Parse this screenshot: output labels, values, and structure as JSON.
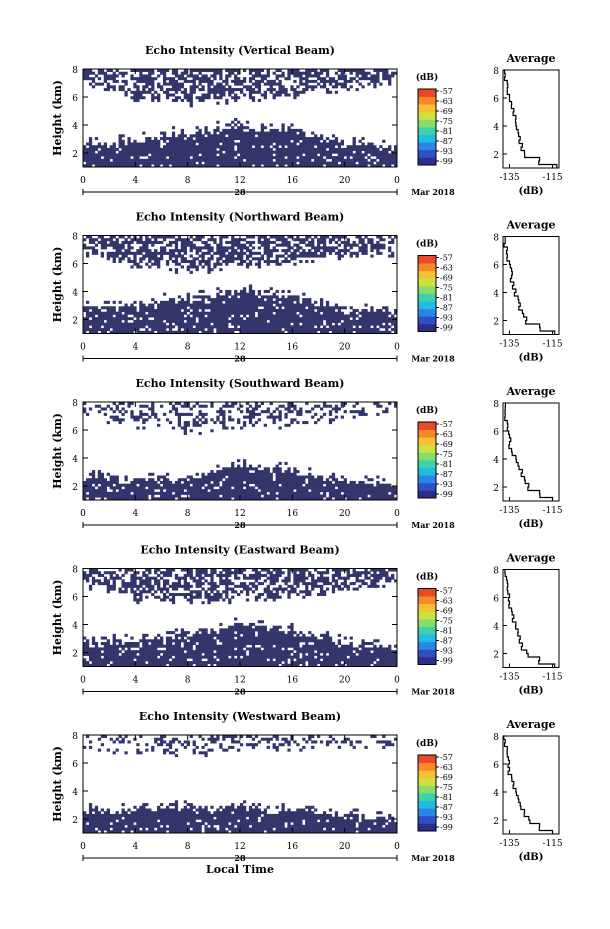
{
  "figure": {
    "bottom_xlabel": "Local Time",
    "colorbar_unit": "(dB)",
    "colorbar_ticks": [
      "-57",
      "-63",
      "-69",
      "-75",
      "-81",
      "-87",
      "-93",
      "-99"
    ],
    "colormap": [
      "#2b2f88",
      "#2f4fc4",
      "#2a86e6",
      "#21bde0",
      "#3fd1a9",
      "#86dd6a",
      "#cfe13f",
      "#f6c232",
      "#f8892a",
      "#ea4a2a"
    ],
    "no_data_color": "#ffffff",
    "echo_color": "#33346b"
  },
  "chart_data": [
    {
      "type": "heatmap",
      "title": "Echo Intensity (Vertical Beam)",
      "ylabel": "Height (km)",
      "x_ticks": [
        "0",
        "4",
        "8",
        "12",
        "16",
        "20",
        "0"
      ],
      "x_range": [
        0,
        24
      ],
      "date_label": "28",
      "month_label": "Mar 2018",
      "y_ticks": [
        "2",
        "4",
        "6",
        "8"
      ],
      "y_range": [
        1,
        8
      ],
      "upper_layer": {
        "bottom_km": [
          6.9,
          6.0,
          5.6,
          5.8,
          6.2,
          6.6,
          6.9
        ],
        "density": 0.62
      },
      "lower_layer": {
        "top_km": [
          2.6,
          2.8,
          3.4,
          3.9,
          3.6,
          2.6,
          2.4
        ],
        "density": 0.9
      },
      "average_profile": {
        "title": "Average",
        "xlabel": "(dB)",
        "x_ticks": [
          "-135",
          "-115"
        ],
        "x_range": [
          -138,
          -112
        ],
        "y_ticks": [
          "2",
          "4",
          "6",
          "8"
        ],
        "y_range": [
          1,
          8
        ],
        "heights_km": [
          1.0,
          1.5,
          2.0,
          2.5,
          3.0,
          3.5,
          4.0,
          4.5,
          5.0,
          5.5,
          6.0,
          6.5,
          7.0,
          7.5,
          8.0
        ],
        "values_db": [
          -113,
          -121,
          -128,
          -129,
          -130,
          -131,
          -132,
          -132,
          -133,
          -134,
          -135,
          -136,
          -136,
          -137,
          -137
        ]
      }
    },
    {
      "type": "heatmap",
      "title": "Echo Intensity (Northward Beam)",
      "ylabel": "Height (km)",
      "x_ticks": [
        "0",
        "4",
        "8",
        "12",
        "16",
        "20",
        "0"
      ],
      "x_range": [
        0,
        24
      ],
      "date_label": "28",
      "month_label": "Mar 2018",
      "y_ticks": [
        "2",
        "4",
        "6",
        "8"
      ],
      "y_range": [
        1,
        8
      ],
      "upper_layer": {
        "bottom_km": [
          6.8,
          5.9,
          5.5,
          5.7,
          6.1,
          6.5,
          6.8
        ],
        "density": 0.6
      },
      "lower_layer": {
        "top_km": [
          2.8,
          2.9,
          3.5,
          3.9,
          3.6,
          2.7,
          2.4
        ],
        "density": 0.9
      },
      "average_profile": {
        "title": "Average",
        "xlabel": "(dB)",
        "x_ticks": [
          "-135",
          "-115"
        ],
        "x_range": [
          -138,
          -112
        ],
        "y_ticks": [
          "2",
          "4",
          "6",
          "8"
        ],
        "y_range": [
          1,
          8
        ],
        "heights_km": [
          1.0,
          1.5,
          2.0,
          2.5,
          3.0,
          3.5,
          4.0,
          4.5,
          5.0,
          5.5,
          6.0,
          6.5,
          7.0,
          7.5,
          8.0
        ],
        "values_db": [
          -114,
          -121,
          -127,
          -129,
          -130,
          -131,
          -132,
          -133,
          -134,
          -134,
          -135,
          -136,
          -136,
          -137,
          -137
        ]
      }
    },
    {
      "type": "heatmap",
      "title": "Echo Intensity (Southward Beam)",
      "ylabel": "Height (km)",
      "x_ticks": [
        "0",
        "4",
        "8",
        "12",
        "16",
        "20",
        "0"
      ],
      "x_range": [
        0,
        24
      ],
      "date_label": "28",
      "month_label": "Mar 2018",
      "y_ticks": [
        "2",
        "4",
        "6",
        "8"
      ],
      "y_range": [
        1,
        8
      ],
      "upper_layer": {
        "bottom_km": [
          7.0,
          6.4,
          6.0,
          6.2,
          6.5,
          6.9,
          7.3
        ],
        "density": 0.35
      },
      "lower_layer": {
        "top_km": [
          2.8,
          2.4,
          2.4,
          3.5,
          3.0,
          2.3,
          2.0
        ],
        "density": 0.9
      },
      "average_profile": {
        "title": "Average",
        "xlabel": "(dB)",
        "x_ticks": [
          "-135",
          "-115"
        ],
        "x_range": [
          -138,
          -112
        ],
        "y_ticks": [
          "2",
          "4",
          "6",
          "8"
        ],
        "y_range": [
          1,
          8
        ],
        "heights_km": [
          1.0,
          1.5,
          2.0,
          2.5,
          3.0,
          3.5,
          4.0,
          4.5,
          5.0,
          5.5,
          6.0,
          6.5,
          7.0,
          7.5,
          8.0
        ],
        "values_db": [
          -115,
          -121,
          -126,
          -128,
          -129,
          -131,
          -132,
          -134,
          -135,
          -135,
          -136,
          -136,
          -137,
          -137,
          -137
        ]
      }
    },
    {
      "type": "heatmap",
      "title": "Echo Intensity (Eastward Beam)",
      "ylabel": "Height (km)",
      "x_ticks": [
        "0",
        "4",
        "8",
        "12",
        "16",
        "20",
        "0"
      ],
      "x_range": [
        0,
        24
      ],
      "date_label": "28",
      "month_label": "Mar 2018",
      "y_ticks": [
        "2",
        "4",
        "6",
        "8"
      ],
      "y_range": [
        1,
        8
      ],
      "upper_layer": {
        "bottom_km": [
          6.8,
          5.8,
          5.5,
          5.8,
          6.0,
          6.4,
          6.9
        ],
        "density": 0.6
      },
      "lower_layer": {
        "top_km": [
          2.5,
          2.8,
          3.3,
          3.9,
          3.5,
          2.7,
          2.3
        ],
        "density": 0.9
      },
      "average_profile": {
        "title": "Average",
        "xlabel": "(dB)",
        "x_ticks": [
          "-135",
          "-115"
        ],
        "x_range": [
          -138,
          -112
        ],
        "y_ticks": [
          "2",
          "4",
          "6",
          "8"
        ],
        "y_range": [
          1,
          8
        ],
        "heights_km": [
          1.0,
          1.5,
          2.0,
          2.5,
          3.0,
          3.5,
          4.0,
          4.5,
          5.0,
          5.5,
          6.0,
          6.5,
          7.0,
          7.5,
          8.0
        ],
        "values_db": [
          -114,
          -121,
          -127,
          -129,
          -130,
          -131,
          -132,
          -133,
          -134,
          -135,
          -135,
          -136,
          -136,
          -137,
          -137
        ]
      }
    },
    {
      "type": "heatmap",
      "title": "Echo Intensity (Westward Beam)",
      "ylabel": "Height (km)",
      "x_ticks": [
        "0",
        "4",
        "8",
        "12",
        "16",
        "20",
        "0"
      ],
      "x_range": [
        0,
        24
      ],
      "date_label": "28",
      "month_label": "Mar 2018",
      "y_ticks": [
        "2",
        "4",
        "6",
        "8"
      ],
      "y_range": [
        1,
        8
      ],
      "upper_layer": {
        "bottom_km": [
          7.2,
          6.8,
          6.6,
          6.8,
          7.0,
          7.1,
          7.3
        ],
        "density": 0.3
      },
      "lower_layer": {
        "top_km": [
          2.4,
          2.6,
          2.7,
          2.8,
          2.6,
          2.2,
          2.0
        ],
        "density": 0.9
      },
      "average_profile": {
        "title": "Average",
        "xlabel": "(dB)",
        "x_ticks": [
          "-135",
          "-115"
        ],
        "x_range": [
          -138,
          -112
        ],
        "y_ticks": [
          "2",
          "4",
          "6",
          "8"
        ],
        "y_range": [
          1,
          8
        ],
        "heights_km": [
          1.0,
          1.5,
          2.0,
          2.5,
          3.0,
          3.5,
          4.0,
          4.5,
          5.0,
          5.5,
          6.0,
          6.5,
          7.0,
          7.5,
          8.0
        ],
        "values_db": [
          -115,
          -121,
          -126,
          -128,
          -130,
          -131,
          -132,
          -133,
          -134,
          -135,
          -135,
          -136,
          -136,
          -137,
          -137
        ]
      }
    }
  ]
}
